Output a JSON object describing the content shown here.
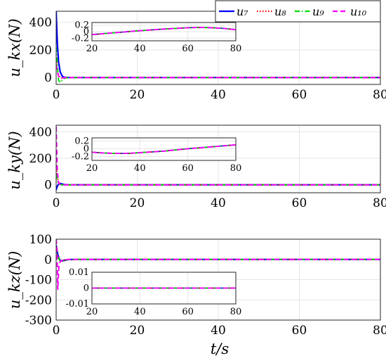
{
  "colors": {
    "u7": "#0000ff",
    "u8": "#ff0000",
    "u9": "#00dd00",
    "u10": "#ff00ff",
    "grid": "#e6e6e6"
  },
  "legend": {
    "placement": "top-right",
    "entries": [
      {
        "key": "u7",
        "label": "u₇",
        "style": "solid"
      },
      {
        "key": "u8",
        "label": "u₈",
        "style": "dotted"
      },
      {
        "key": "u9",
        "label": "u₉",
        "style": "dashdot"
      },
      {
        "key": "u10",
        "label": "u₁₀",
        "style": "dashed"
      }
    ]
  },
  "xlabel": "t/s",
  "chart_data": [
    {
      "type": "line",
      "ylabel": "u_kx(N)",
      "xlim": [
        0,
        80
      ],
      "ylim": [
        -50,
        480
      ],
      "xticks": [
        "0",
        "20",
        "40",
        "60",
        "80"
      ],
      "yticks": [
        "0",
        "200",
        "400"
      ],
      "grid": true,
      "series": [
        {
          "name": "u₇",
          "x": [
            0,
            0.3,
            0.6,
            1,
            1.5,
            2,
            3,
            5,
            80
          ],
          "y": [
            480,
            250,
            110,
            40,
            10,
            2,
            0,
            0,
            0
          ]
        },
        {
          "name": "u₈",
          "x": [
            0,
            0.3,
            0.6,
            1,
            1.5,
            2,
            3,
            5,
            80
          ],
          "y": [
            130,
            60,
            20,
            0,
            -4,
            -2,
            0,
            0,
            0
          ]
        },
        {
          "name": "u₉",
          "x": [
            0,
            0.3,
            0.6,
            1,
            1.5,
            2,
            3,
            5,
            80
          ],
          "y": [
            220,
            80,
            -20,
            -35,
            -20,
            -5,
            0,
            0,
            0
          ]
        },
        {
          "name": "u₁₀",
          "x": [
            0,
            0.3,
            0.6,
            1,
            1.5,
            2,
            3,
            5,
            80
          ],
          "y": [
            90,
            40,
            10,
            -5,
            -3,
            -1,
            0,
            0,
            0
          ]
        }
      ],
      "inset": {
        "xlim": [
          20,
          80
        ],
        "ylim": [
          -0.28,
          0.28
        ],
        "xticks": [
          "20",
          "40",
          "60",
          "80"
        ],
        "yticks": [
          "0.2",
          "0",
          "-0.2"
        ],
        "x": [
          20,
          30,
          40,
          50,
          60,
          65,
          70,
          75,
          80
        ],
        "y": [
          -0.09,
          -0.03,
          0.03,
          0.08,
          0.12,
          0.13,
          0.12,
          0.1,
          0.06
        ]
      }
    },
    {
      "type": "line",
      "ylabel": "u_ky(N)",
      "xlim": [
        0,
        80
      ],
      "ylim": [
        -60,
        450
      ],
      "xticks": [
        "0",
        "20",
        "40",
        "60",
        "80"
      ],
      "yticks": [
        "0",
        "200",
        "400"
      ],
      "grid": true,
      "series": [
        {
          "name": "u₇",
          "x": [
            0,
            0.3,
            0.6,
            1,
            1.5,
            2,
            3,
            5,
            80
          ],
          "y": [
            -40,
            -10,
            5,
            10,
            6,
            2,
            0,
            0,
            0
          ]
        },
        {
          "name": "u₈",
          "x": [
            0,
            0.3,
            0.6,
            1,
            1.5,
            2,
            3,
            5,
            80
          ],
          "y": [
            150,
            60,
            15,
            2,
            0,
            0,
            0,
            0,
            0
          ]
        },
        {
          "name": "u₉",
          "x": [
            0,
            0.3,
            0.6,
            1,
            1.5,
            2,
            3,
            5,
            80
          ],
          "y": [
            80,
            30,
            8,
            1,
            0,
            0,
            0,
            0,
            0
          ]
        },
        {
          "name": "u₁₀",
          "x": [
            0,
            0.3,
            0.6,
            1,
            1.5,
            2,
            3,
            5,
            80
          ],
          "y": [
            440,
            100,
            15,
            2,
            0,
            0,
            0,
            0,
            0
          ]
        }
      ],
      "inset": {
        "xlim": [
          20,
          80
        ],
        "ylim": [
          -0.3,
          0.28
        ],
        "xticks": [
          "20",
          "40",
          "60",
          "80"
        ],
        "yticks": [
          "0.2",
          "0",
          "-0.2"
        ],
        "x": [
          20,
          25,
          30,
          35,
          40,
          50,
          60,
          70,
          80
        ],
        "y": [
          -0.09,
          -0.11,
          -0.12,
          -0.12,
          -0.1,
          -0.06,
          0.0,
          0.05,
          0.1
        ]
      }
    },
    {
      "type": "line",
      "ylabel": "u_kz(N)",
      "xlim": [
        0,
        80
      ],
      "ylim": [
        -300,
        100
      ],
      "xticks": [
        "0",
        "20",
        "40",
        "60",
        "80"
      ],
      "yticks": [
        "100",
        "0",
        "-100",
        "-200",
        "-300"
      ],
      "grid": true,
      "series": [
        {
          "name": "u₇",
          "x": [
            0,
            0.3,
            0.6,
            1,
            1.5,
            2,
            3,
            5,
            80
          ],
          "y": [
            70,
            35,
            10,
            -5,
            -8,
            -5,
            -1,
            0,
            0
          ]
        },
        {
          "name": "u₈",
          "x": [
            0,
            0.3,
            0.6,
            1,
            1.5,
            2,
            3,
            5,
            80
          ],
          "y": [
            40,
            20,
            5,
            -5,
            -6,
            -3,
            -1,
            0,
            0
          ]
        },
        {
          "name": "u₉",
          "x": [
            0,
            0.3,
            0.6,
            1,
            1.5,
            2,
            3,
            5,
            80
          ],
          "y": [
            60,
            25,
            5,
            -8,
            -10,
            -5,
            -1,
            0,
            0
          ]
        },
        {
          "name": "u₁₀",
          "x": [
            0,
            0.2,
            0.4,
            0.7,
            1,
            1.5,
            2,
            3,
            5,
            80
          ],
          "y": [
            100,
            50,
            -150,
            -30,
            -10,
            -5,
            -2,
            0,
            0,
            0
          ]
        }
      ],
      "inset": {
        "xlim": [
          20,
          80
        ],
        "ylim": [
          -0.01,
          0.01
        ],
        "xticks": [
          "20",
          "40",
          "60",
          "80"
        ],
        "yticks": [
          "0.01",
          "0",
          "-0.01"
        ],
        "x": [
          20,
          80
        ],
        "y": [
          0,
          0
        ]
      }
    }
  ]
}
